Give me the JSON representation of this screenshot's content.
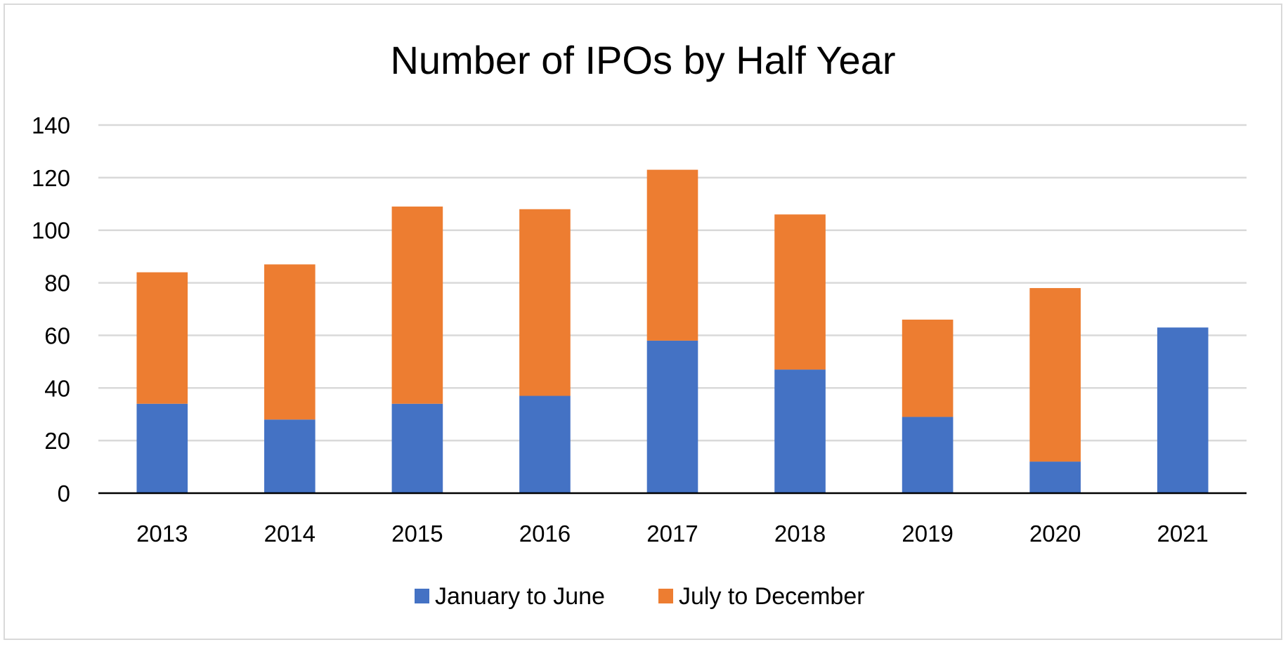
{
  "chart_data": {
    "type": "bar",
    "stacked": true,
    "title": "Number of IPOs by Half Year",
    "xlabel": "",
    "ylabel": "",
    "categories": [
      "2013",
      "2014",
      "2015",
      "2016",
      "2017",
      "2018",
      "2019",
      "2020",
      "2021"
    ],
    "series": [
      {
        "name": "January to June",
        "color": "#4472C4",
        "values": [
          34,
          28,
          34,
          37,
          58,
          47,
          29,
          12,
          63
        ]
      },
      {
        "name": "July to December",
        "color": "#ED7D31",
        "values": [
          50,
          59,
          75,
          71,
          65,
          59,
          37,
          66,
          0
        ]
      }
    ],
    "ylim": [
      0,
      140
    ],
    "yticks": [
      "0",
      "20",
      "40",
      "60",
      "80",
      "100",
      "120",
      "140"
    ],
    "grid": true,
    "legend_position": "bottom"
  }
}
